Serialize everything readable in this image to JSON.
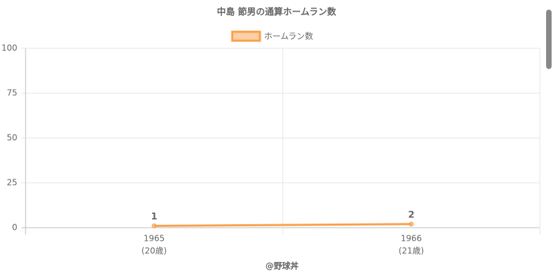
{
  "chart_data": {
    "type": "line",
    "title": "中島 節男の通算ホームラン数",
    "categories": [
      "1965",
      "1966"
    ],
    "category_sublabels": [
      "(20歳)",
      "(21歳)"
    ],
    "series": [
      {
        "name": "ホームラン数",
        "color": "#f9a04a",
        "values": [
          1,
          2
        ]
      }
    ],
    "ylim": [
      0,
      100
    ],
    "yticks": [
      0,
      25,
      50,
      75,
      100
    ],
    "grid": true,
    "legend": "top",
    "footer": "@野球丼"
  }
}
